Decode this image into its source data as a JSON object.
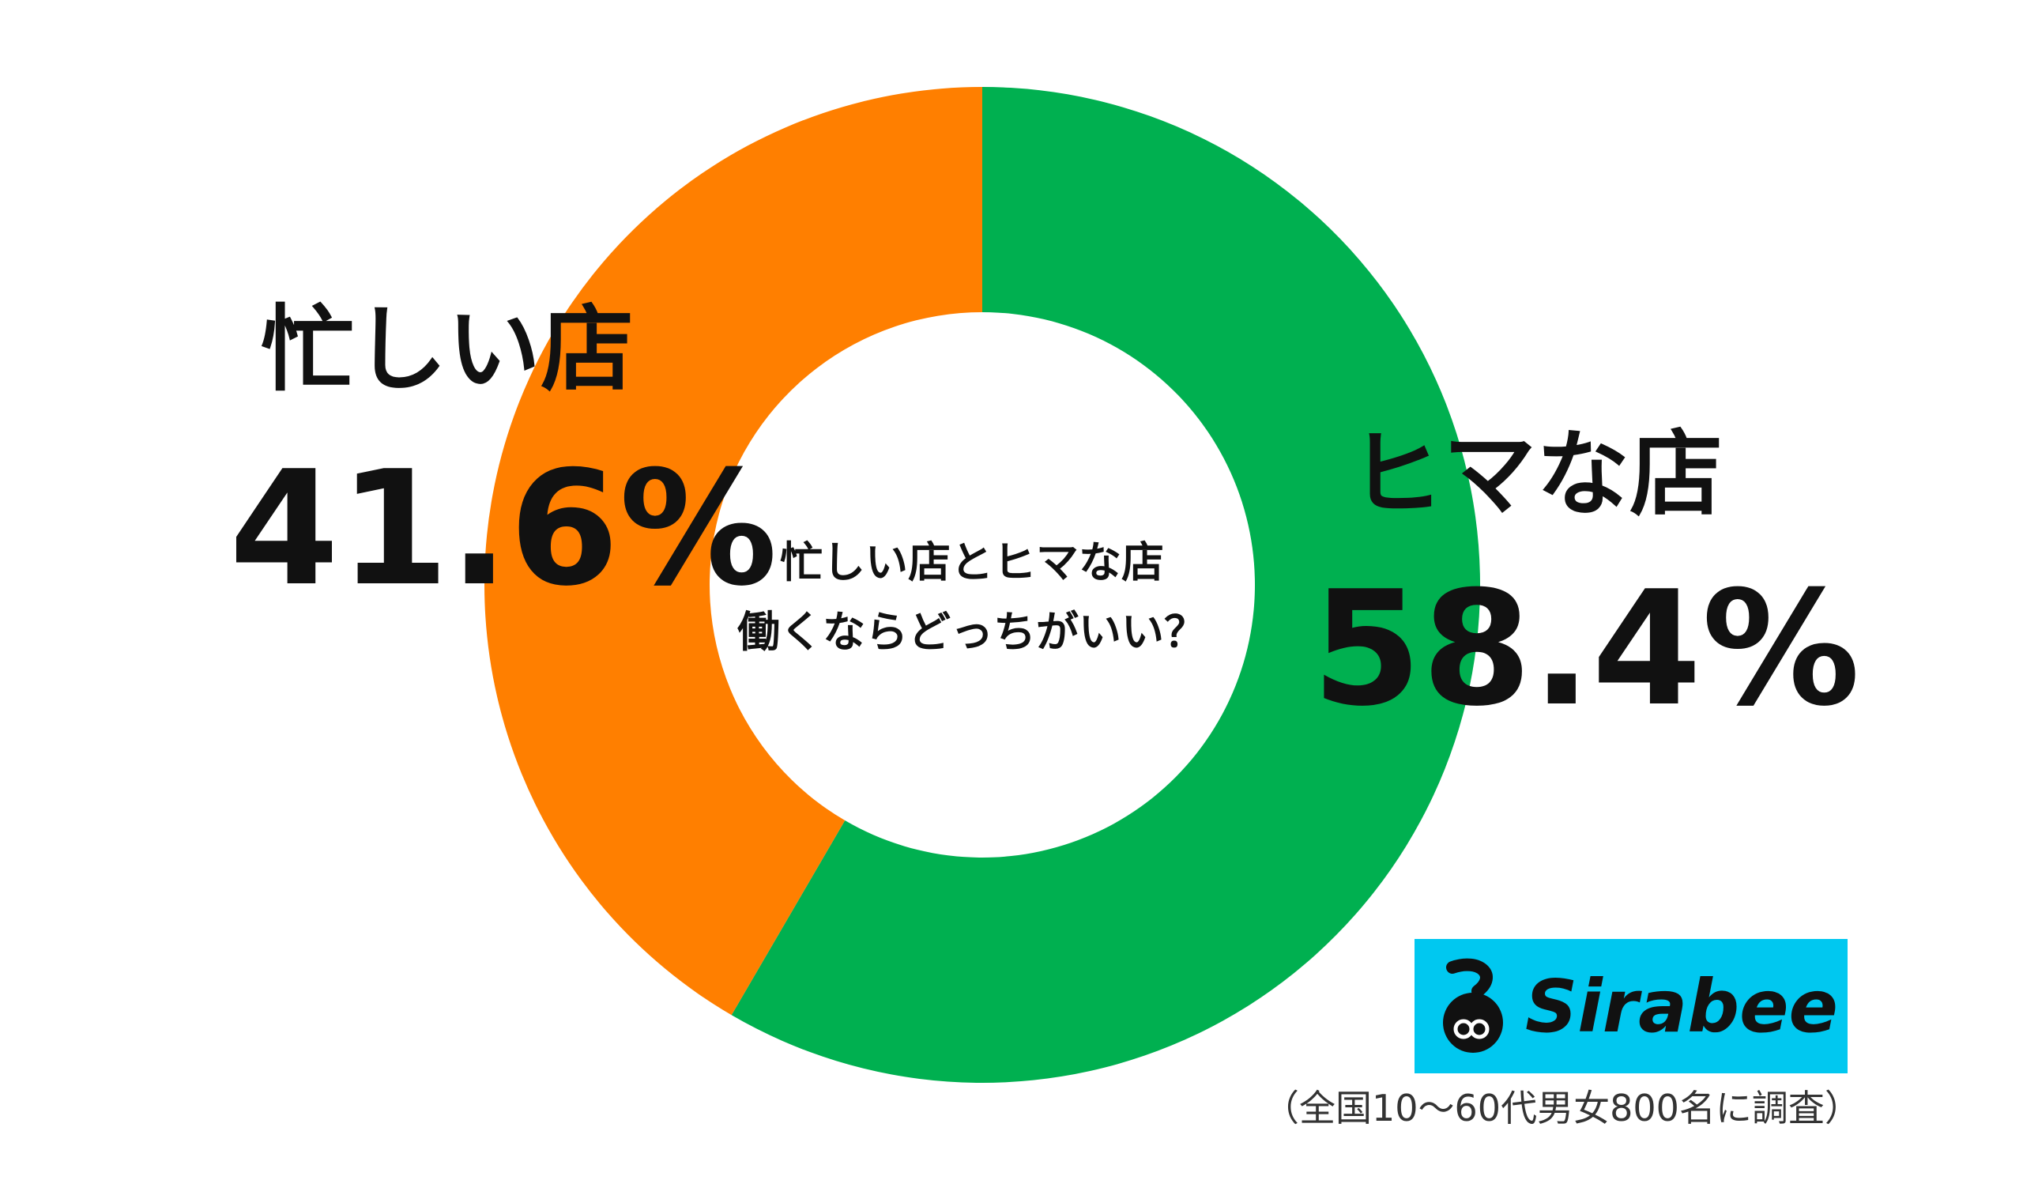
{
  "chart_data": {
    "type": "pie",
    "style": "donut",
    "title_lines": [
      "忙しい店とヒマな店",
      "働くならどっちがいい？"
    ],
    "slices": [
      {
        "name": "ヒマな店",
        "value": 58.4,
        "value_label": "58.4%",
        "color": "#00b050"
      },
      {
        "name": "忙しい店",
        "value": 41.6,
        "value_label": "41.6%",
        "color": "#ff7f00"
      }
    ],
    "start": "top",
    "direction": "clockwise",
    "note": "（全国10～60代男女800名に調査）"
  },
  "brand": {
    "name": "Sirabee",
    "background_color": "#00c8f0",
    "mark": "sirabee-logo-mark"
  }
}
